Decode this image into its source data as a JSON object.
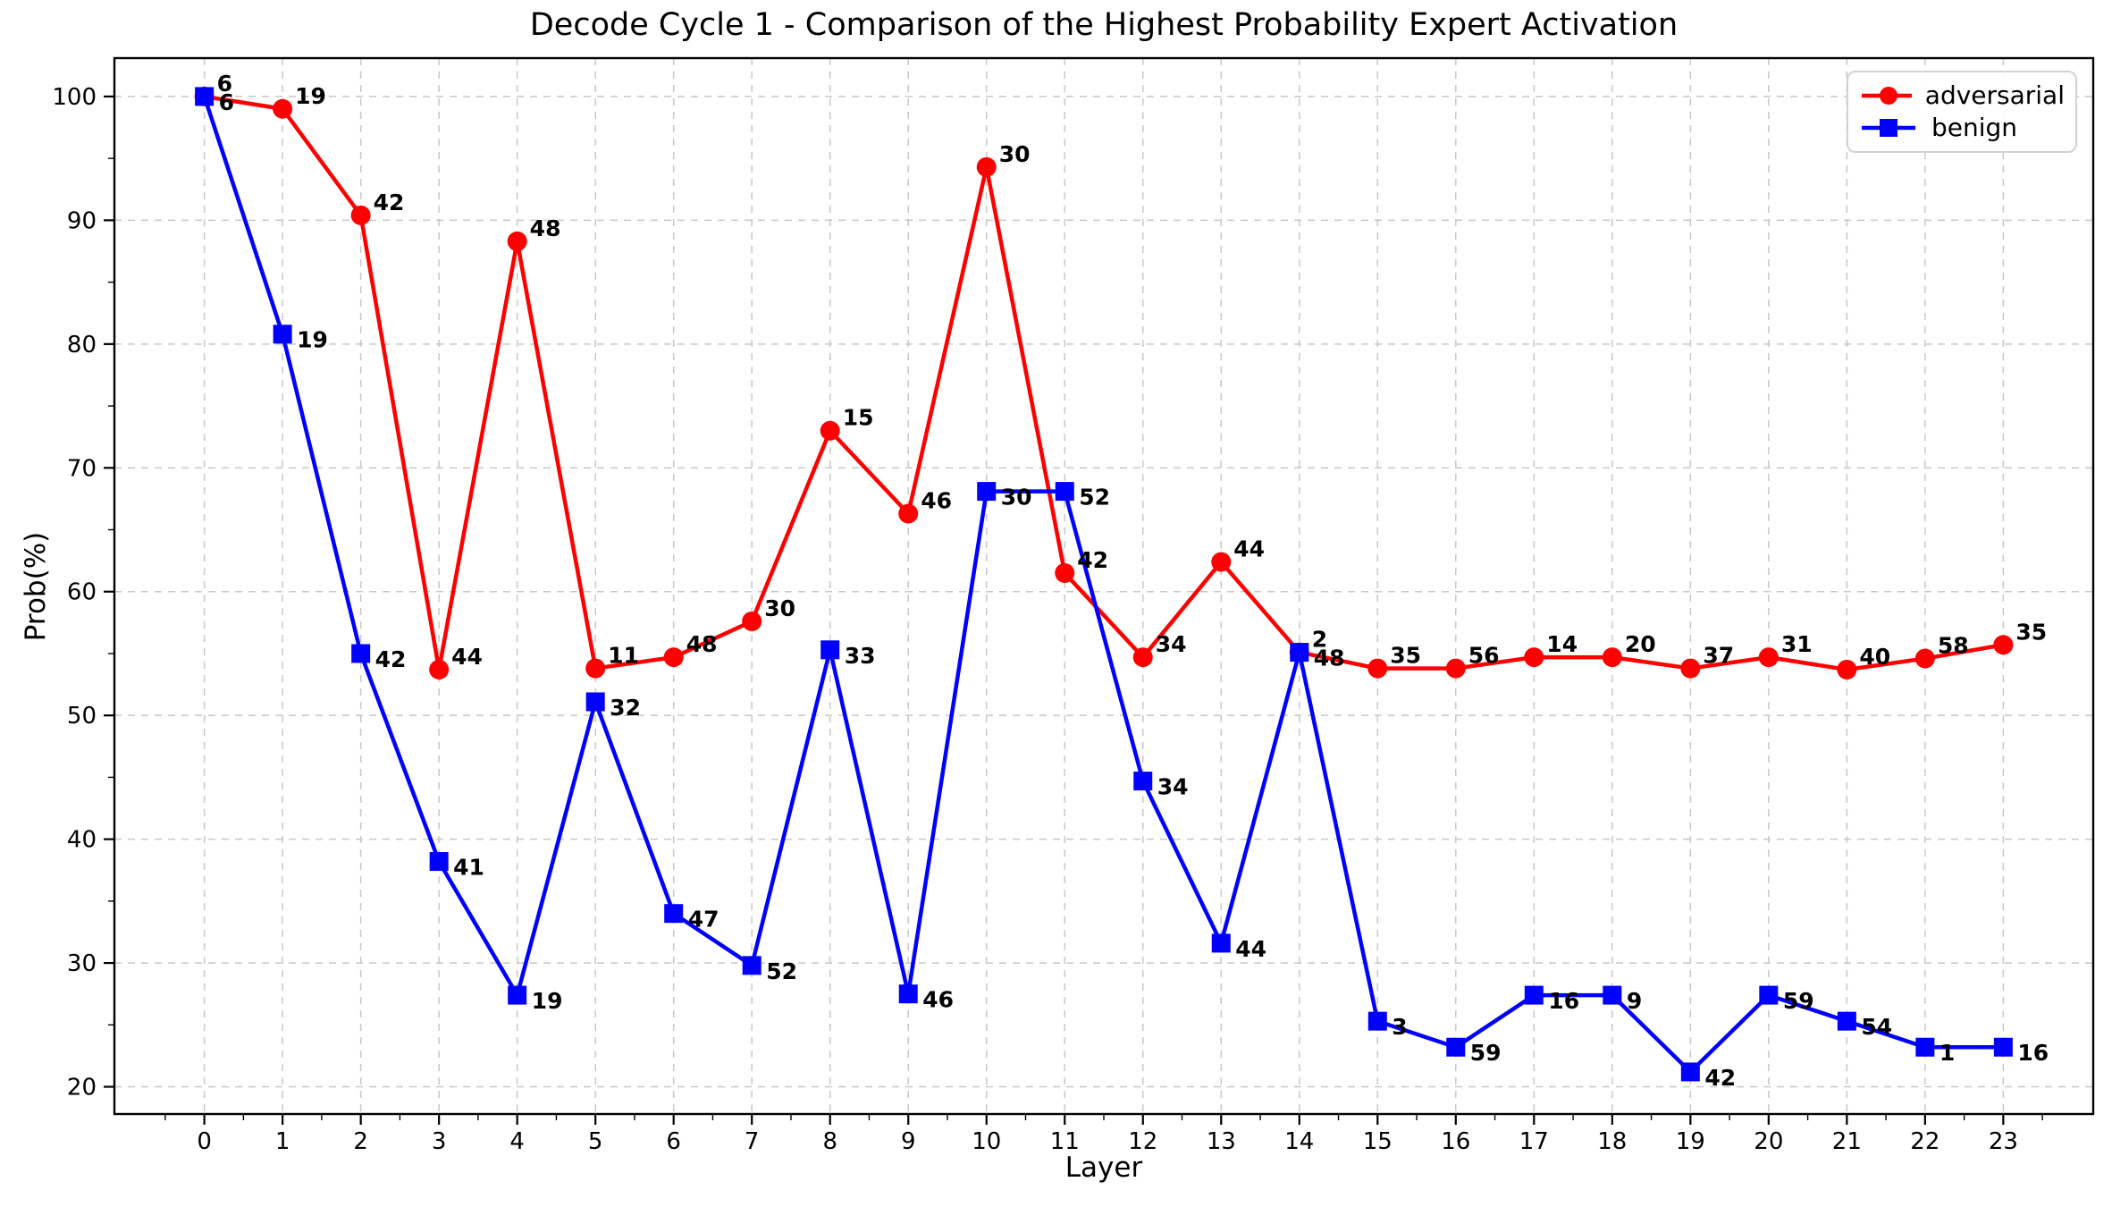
{
  "figure": {
    "title": "Decode Cycle 1 - Comparison of the Highest Probability Expert Activation"
  },
  "chart_data": {
    "type": "line",
    "title": "Decode Cycle 1 - Comparison of the Highest Probability Expert Activation",
    "xlabel": "Layer",
    "ylabel": "Prob(%)",
    "x": [
      0,
      1,
      2,
      3,
      4,
      5,
      6,
      7,
      8,
      9,
      10,
      11,
      12,
      13,
      14,
      15,
      16,
      17,
      18,
      19,
      20,
      21,
      22,
      23
    ],
    "xlim": [
      -1.15,
      24.15
    ],
    "ylim": [
      17.8,
      103.1
    ],
    "yticks": [
      20,
      30,
      40,
      50,
      60,
      70,
      80,
      90,
      100
    ],
    "grid": true,
    "grid_style": "dashed",
    "legend_position": "upper right",
    "series": [
      {
        "name": "adversarial",
        "color": "#ff0000",
        "marker": "circle",
        "values": [
          100,
          99,
          90.4,
          53.7,
          88.3,
          53.8,
          54.7,
          57.6,
          73,
          66.3,
          94.3,
          61.5,
          54.7,
          62.4,
          55.1,
          53.8,
          53.8,
          54.7,
          54.7,
          53.8,
          54.7,
          53.7,
          54.6,
          55.7
        ],
        "point_labels": [
          "6",
          "19",
          "42",
          "44",
          "48",
          "11",
          "48",
          "30",
          "15",
          "46",
          "30",
          "42",
          "34",
          "44",
          "2",
          "35",
          "56",
          "14",
          "20",
          "37",
          "31",
          "40",
          "58",
          "35"
        ]
      },
      {
        "name": "benign",
        "color": "#0000ff",
        "marker": "square",
        "values": [
          100,
          80.8,
          55.0,
          38.2,
          27.4,
          51.1,
          34.0,
          29.8,
          55.3,
          27.5,
          68.1,
          68.1,
          44.7,
          31.6,
          55.1,
          25.3,
          23.2,
          27.4,
          27.4,
          21.2,
          27.4,
          25.3,
          23.2,
          23.2
        ],
        "point_labels": [
          "6",
          "19",
          "42",
          "41",
          "19",
          "32",
          "47",
          "52",
          "33",
          "46",
          "30",
          "52",
          "34",
          "44",
          "48",
          "3",
          "59",
          "16",
          "9",
          "42",
          "59",
          "54",
          "1",
          "16"
        ]
      }
    ]
  }
}
